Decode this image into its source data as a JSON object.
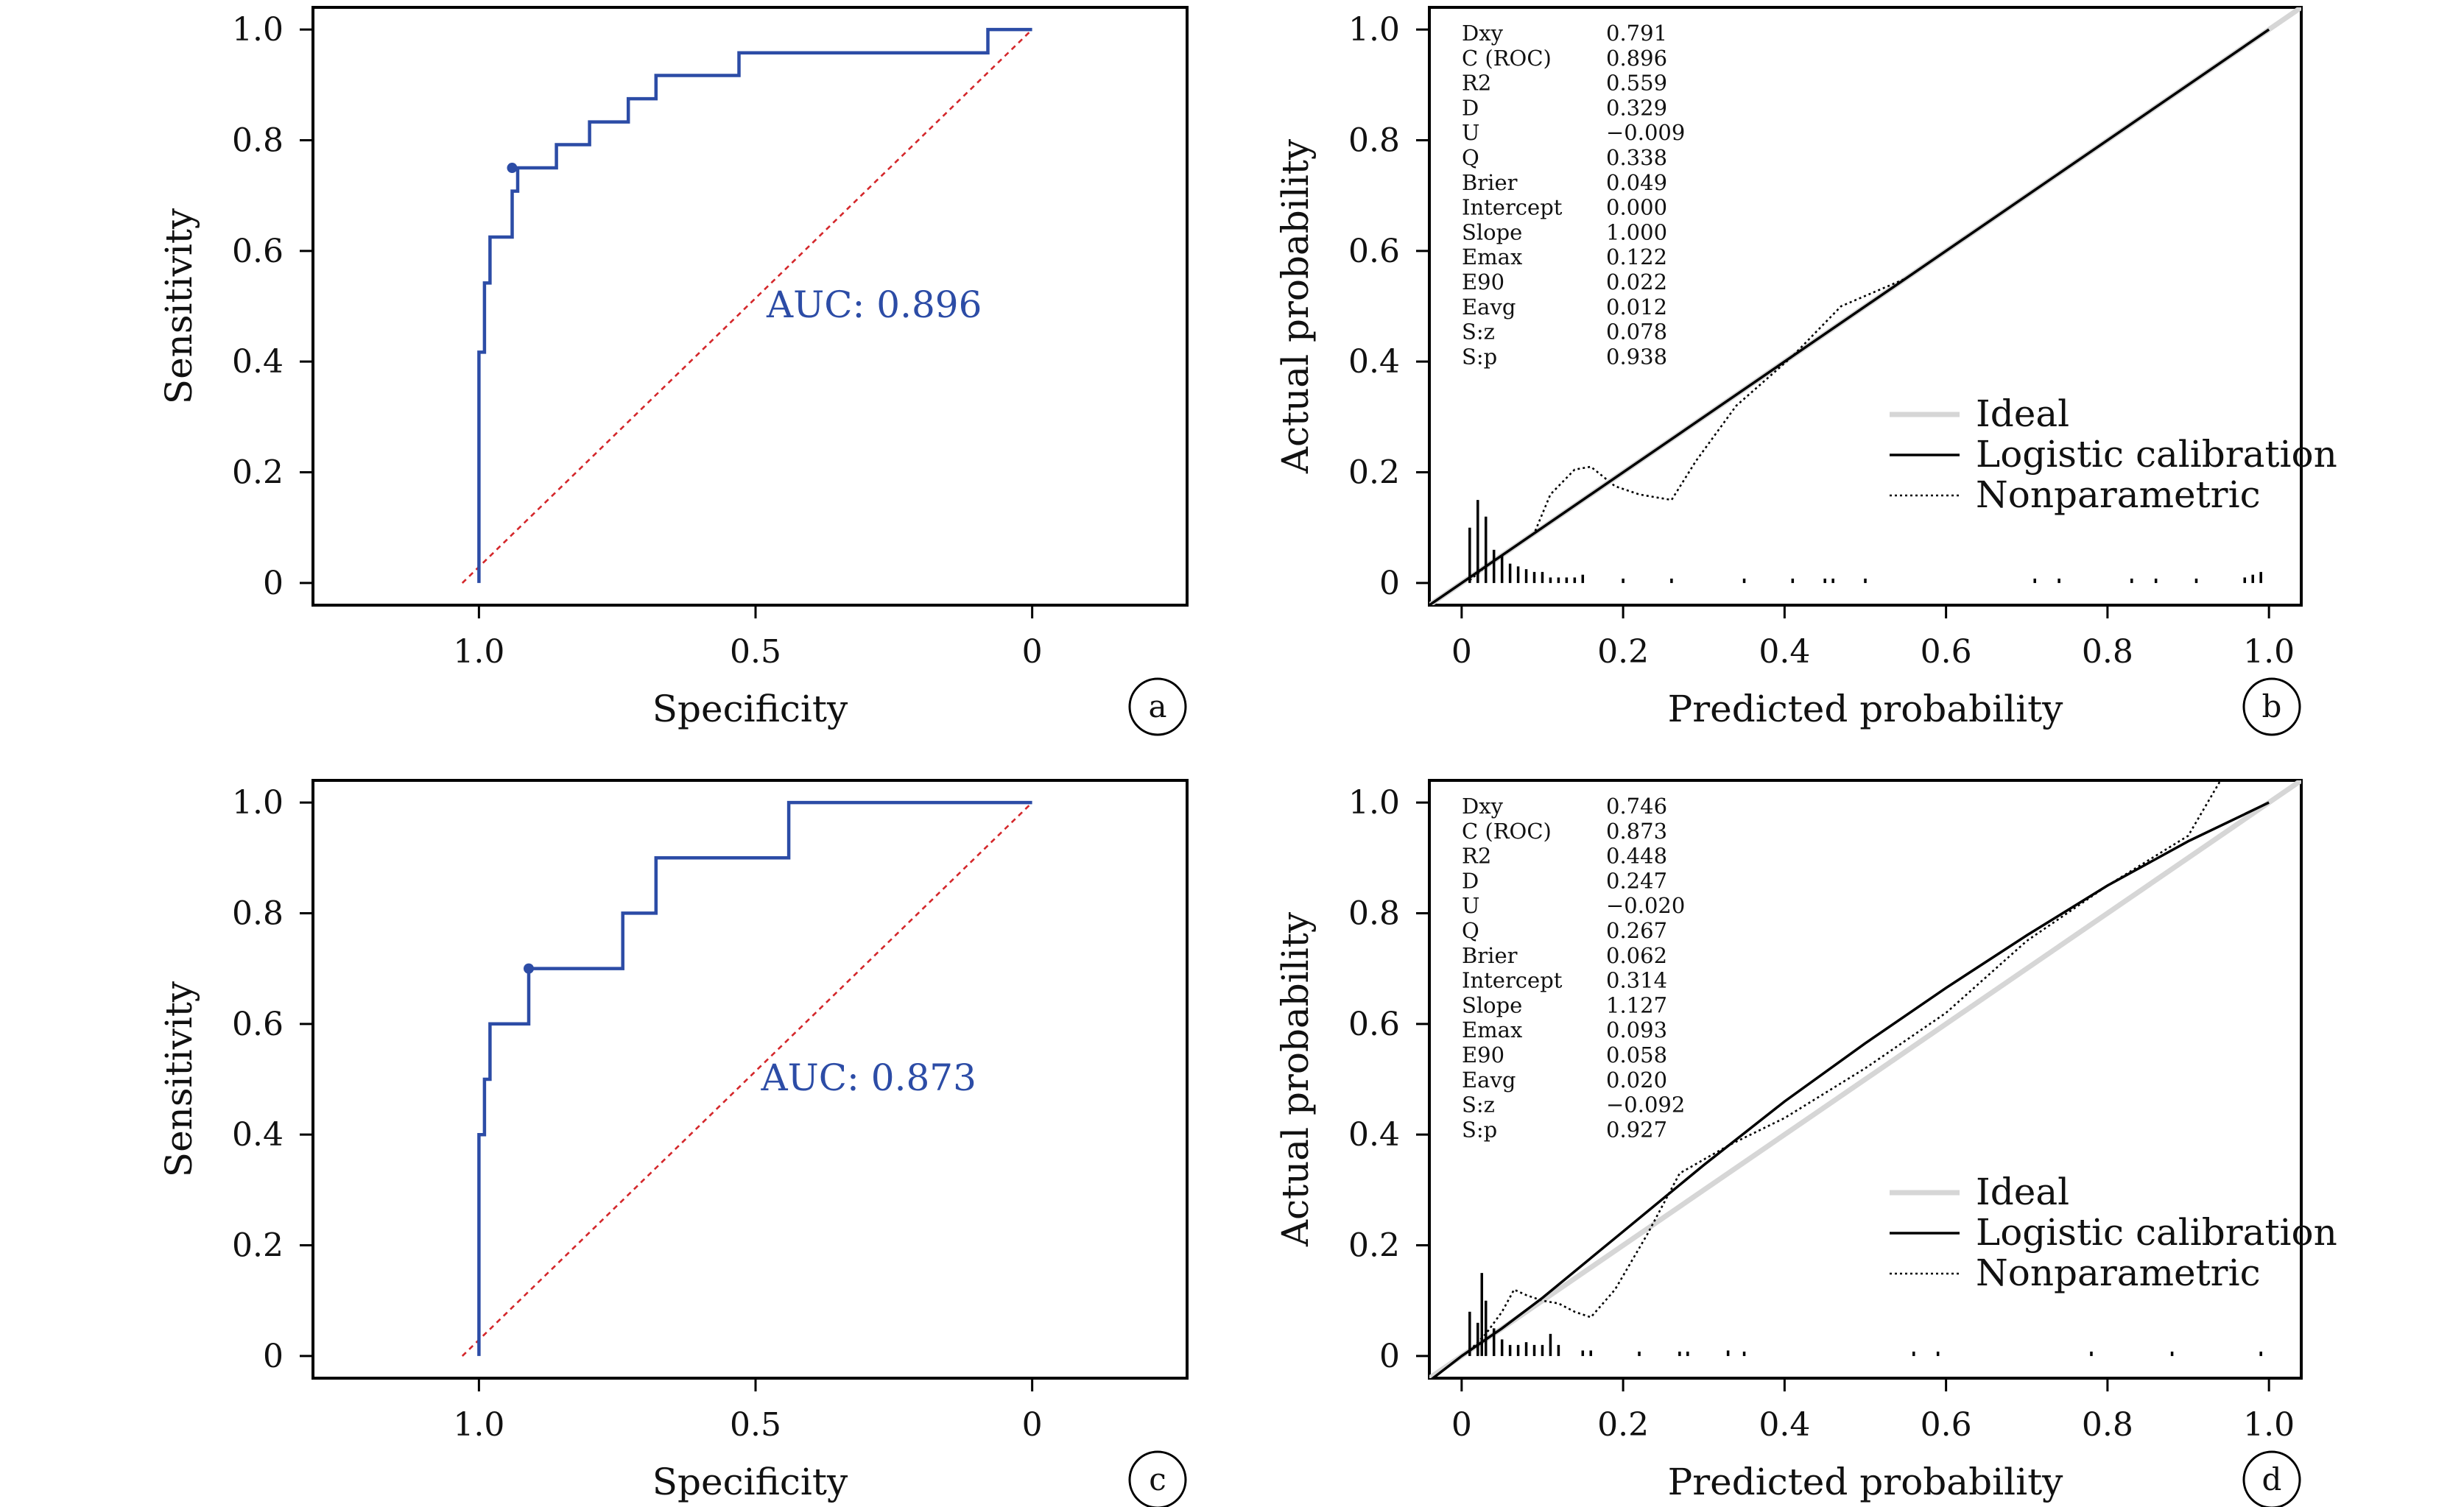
{
  "chart_data": [
    {
      "id": "a",
      "type": "line",
      "subtype": "roc",
      "xlabel": "Specificity",
      "ylabel": "Sensitivity",
      "x_reversed": true,
      "xlim": [
        1.3,
        -0.28
      ],
      "ylim": [
        -0.04,
        1.04
      ],
      "xticks": [
        1.0,
        0.5,
        0
      ],
      "xtick_labels": [
        "1.0",
        "0.5",
        "0"
      ],
      "yticks": [
        0,
        0.2,
        0.4,
        0.6,
        0.8,
        1.0
      ],
      "ytick_labels": [
        "0",
        "0.2",
        "0.4",
        "0.6",
        "0.8",
        "1.0"
      ],
      "auc_label": "AUC: 0.896",
      "auc_position": [
        0.48,
        0.48
      ],
      "marked_point": [
        0.94,
        0.75
      ],
      "curve": [
        [
          1.0,
          0
        ],
        [
          1.0,
          0.417
        ],
        [
          0.99,
          0.417
        ],
        [
          0.99,
          0.542
        ],
        [
          0.98,
          0.542
        ],
        [
          0.98,
          0.625
        ],
        [
          0.96,
          0.625
        ],
        [
          0.96,
          0.625
        ],
        [
          0.94,
          0.625
        ],
        [
          0.94,
          0.708
        ],
        [
          0.93,
          0.708
        ],
        [
          0.93,
          0.75
        ],
        [
          0.86,
          0.75
        ],
        [
          0.86,
          0.792
        ],
        [
          0.8,
          0.792
        ],
        [
          0.8,
          0.833
        ],
        [
          0.73,
          0.833
        ],
        [
          0.73,
          0.875
        ],
        [
          0.68,
          0.875
        ],
        [
          0.68,
          0.917
        ],
        [
          0.53,
          0.917
        ],
        [
          0.53,
          0.958
        ],
        [
          0.08,
          0.958
        ],
        [
          0.08,
          1.0
        ],
        [
          0,
          1.0
        ]
      ],
      "chance_line": [
        [
          1.03,
          0
        ],
        [
          0,
          1.0
        ]
      ],
      "panel_label": "a"
    },
    {
      "id": "b",
      "type": "line",
      "subtype": "calibration",
      "xlabel": "Predicted probability",
      "ylabel": "Actual probability",
      "xlim": [
        -0.04,
        1.04
      ],
      "ylim": [
        -0.04,
        1.04
      ],
      "xticks": [
        0,
        0.2,
        0.4,
        0.6,
        0.8,
        1.0
      ],
      "xtick_labels": [
        "0",
        "0.2",
        "0.4",
        "0.6",
        "0.8",
        "1.0"
      ],
      "yticks": [
        0,
        0.2,
        0.4,
        0.6,
        0.8,
        1.0
      ],
      "ytick_labels": [
        "0",
        "0.2",
        "0.4",
        "0.6",
        "0.8",
        "1.0"
      ],
      "stats": [
        {
          "name": "Dxy",
          "value": "0.791"
        },
        {
          "name": "C (ROC)",
          "value": "0.896"
        },
        {
          "name": "R2",
          "value": "0.559"
        },
        {
          "name": "D",
          "value": "0.329"
        },
        {
          "name": "U",
          "value": "−0.009"
        },
        {
          "name": "Q",
          "value": "0.338"
        },
        {
          "name": "Brier",
          "value": "0.049"
        },
        {
          "name": "Intercept",
          "value": "0.000"
        },
        {
          "name": "Slope",
          "value": "1.000"
        },
        {
          "name": "Emax",
          "value": "0.122"
        },
        {
          "name": "E90",
          "value": "0.022"
        },
        {
          "name": "Eavg",
          "value": "0.012"
        },
        {
          "name": "S:z",
          "value": "0.078"
        },
        {
          "name": "S:p",
          "value": "0.938"
        }
      ],
      "legend": [
        "Ideal",
        "Logistic calibration",
        "Nonparametric"
      ],
      "legend_position": "bottom-right",
      "ideal": [
        [
          -0.04,
          -0.04
        ],
        [
          1.04,
          1.04
        ]
      ],
      "logistic": [
        [
          -0.04,
          -0.04
        ],
        [
          1.0,
          1.0
        ]
      ],
      "nonparametric": [
        [
          0.01,
          0.005
        ],
        [
          0.03,
          0.03
        ],
        [
          0.06,
          0.06
        ],
        [
          0.09,
          0.09
        ],
        [
          0.11,
          0.16
        ],
        [
          0.14,
          0.205
        ],
        [
          0.16,
          0.21
        ],
        [
          0.19,
          0.175
        ],
        [
          0.22,
          0.16
        ],
        [
          0.24,
          0.155
        ],
        [
          0.26,
          0.15
        ],
        [
          0.29,
          0.22
        ],
        [
          0.34,
          0.32
        ],
        [
          0.41,
          0.41
        ],
        [
          0.47,
          0.5
        ],
        [
          0.55,
          0.55
        ],
        [
          0.65,
          0.65
        ],
        [
          0.75,
          0.75
        ],
        [
          0.85,
          0.85
        ],
        [
          0.99,
          0.99
        ]
      ],
      "rug_bottom": [
        [
          0.01,
          0.1
        ],
        [
          0.02,
          0.15
        ],
        [
          0.03,
          0.12
        ],
        [
          0.04,
          0.06
        ],
        [
          0.05,
          0.05
        ],
        [
          0.06,
          0.035
        ],
        [
          0.07,
          0.03
        ],
        [
          0.08,
          0.025
        ],
        [
          0.09,
          0.02
        ],
        [
          0.1,
          0.02
        ],
        [
          0.11,
          0.01
        ],
        [
          0.12,
          0.01
        ],
        [
          0.13,
          0.01
        ],
        [
          0.14,
          0.01
        ],
        [
          0.15,
          0.015
        ],
        [
          0.2,
          0.008
        ],
        [
          0.26,
          0.008
        ],
        [
          0.35,
          0.008
        ],
        [
          0.41,
          0.008
        ],
        [
          0.45,
          0.008
        ],
        [
          0.46,
          0.008
        ],
        [
          0.5,
          0.008
        ],
        [
          0.71,
          0.008
        ],
        [
          0.74,
          0.008
        ],
        [
          0.83,
          0.008
        ],
        [
          0.86,
          0.008
        ],
        [
          0.91,
          0.008
        ],
        [
          0.97,
          0.01
        ],
        [
          0.98,
          0.015
        ],
        [
          0.99,
          0.02
        ]
      ],
      "panel_label": "b"
    },
    {
      "id": "c",
      "type": "line",
      "subtype": "roc",
      "xlabel": "Specificity",
      "ylabel": "Sensitivity",
      "x_reversed": true,
      "xlim": [
        1.3,
        -0.28
      ],
      "ylim": [
        -0.04,
        1.04
      ],
      "xticks": [
        1.0,
        0.5,
        0
      ],
      "xtick_labels": [
        "1.0",
        "0.5",
        "0"
      ],
      "yticks": [
        0,
        0.2,
        0.4,
        0.6,
        0.8,
        1.0
      ],
      "ytick_labels": [
        "0",
        "0.2",
        "0.4",
        "0.6",
        "0.8",
        "1.0"
      ],
      "auc_label": "AUC: 0.873",
      "auc_position": [
        0.49,
        0.48
      ],
      "marked_point": [
        0.91,
        0.7
      ],
      "curve": [
        [
          1.0,
          0
        ],
        [
          1.0,
          0.4
        ],
        [
          0.99,
          0.4
        ],
        [
          0.99,
          0.5
        ],
        [
          0.98,
          0.5
        ],
        [
          0.98,
          0.6
        ],
        [
          0.91,
          0.6
        ],
        [
          0.91,
          0.7
        ],
        [
          0.74,
          0.7
        ],
        [
          0.74,
          0.8
        ],
        [
          0.68,
          0.8
        ],
        [
          0.68,
          0.9
        ],
        [
          0.44,
          0.9
        ],
        [
          0.44,
          1.0
        ],
        [
          0,
          1.0
        ]
      ],
      "chance_line": [
        [
          1.03,
          0
        ],
        [
          0,
          1.0
        ]
      ],
      "panel_label": "c"
    },
    {
      "id": "d",
      "type": "line",
      "subtype": "calibration",
      "xlabel": "Predicted probability",
      "ylabel": "Actual probability",
      "xlim": [
        -0.04,
        1.04
      ],
      "ylim": [
        -0.04,
        1.04
      ],
      "xticks": [
        0,
        0.2,
        0.4,
        0.6,
        0.8,
        1.0
      ],
      "xtick_labels": [
        "0",
        "0.2",
        "0.4",
        "0.6",
        "0.8",
        "1.0"
      ],
      "yticks": [
        0,
        0.2,
        0.4,
        0.6,
        0.8,
        1.0
      ],
      "ytick_labels": [
        "0",
        "0.2",
        "0.4",
        "0.6",
        "0.8",
        "1.0"
      ],
      "stats": [
        {
          "name": "Dxy",
          "value": "0.746"
        },
        {
          "name": "C (ROC)",
          "value": "0.873"
        },
        {
          "name": "R2",
          "value": "0.448"
        },
        {
          "name": "D",
          "value": "0.247"
        },
        {
          "name": "U",
          "value": "−0.020"
        },
        {
          "name": "Q",
          "value": "0.267"
        },
        {
          "name": "Brier",
          "value": "0.062"
        },
        {
          "name": "Intercept",
          "value": "0.314"
        },
        {
          "name": "Slope",
          "value": "1.127"
        },
        {
          "name": "Emax",
          "value": "0.093"
        },
        {
          "name": "E90",
          "value": "0.058"
        },
        {
          "name": "Eavg",
          "value": "0.020"
        },
        {
          "name": "S:z",
          "value": "−0.092"
        },
        {
          "name": "S:p",
          "value": "0.927"
        }
      ],
      "legend": [
        "Ideal",
        "Logistic calibration",
        "Nonparametric"
      ],
      "legend_position": "bottom-right",
      "ideal": [
        [
          -0.04,
          -0.04
        ],
        [
          1.04,
          1.04
        ]
      ],
      "logistic": [
        [
          -0.04,
          -0.045
        ],
        [
          0.0,
          0.0
        ],
        [
          0.05,
          0.05
        ],
        [
          0.1,
          0.105
        ],
        [
          0.2,
          0.225
        ],
        [
          0.3,
          0.345
        ],
        [
          0.4,
          0.46
        ],
        [
          0.5,
          0.565
        ],
        [
          0.6,
          0.665
        ],
        [
          0.7,
          0.76
        ],
        [
          0.8,
          0.85
        ],
        [
          0.9,
          0.93
        ],
        [
          1.0,
          1.0
        ]
      ],
      "nonparametric": [
        [
          0.01,
          0.01
        ],
        [
          0.03,
          0.04
        ],
        [
          0.05,
          0.08
        ],
        [
          0.065,
          0.12
        ],
        [
          0.08,
          0.11
        ],
        [
          0.1,
          0.1
        ],
        [
          0.12,
          0.095
        ],
        [
          0.14,
          0.08
        ],
        [
          0.16,
          0.07
        ],
        [
          0.19,
          0.12
        ],
        [
          0.23,
          0.22
        ],
        [
          0.27,
          0.33
        ],
        [
          0.33,
          0.38
        ],
        [
          0.4,
          0.43
        ],
        [
          0.5,
          0.52
        ],
        [
          0.6,
          0.62
        ],
        [
          0.7,
          0.75
        ],
        [
          0.8,
          0.85
        ],
        [
          0.9,
          0.94
        ],
        [
          0.94,
          1.04
        ]
      ],
      "rug_bottom": [
        [
          0.01,
          0.08
        ],
        [
          0.02,
          0.06
        ],
        [
          0.025,
          0.15
        ],
        [
          0.03,
          0.1
        ],
        [
          0.04,
          0.05
        ],
        [
          0.05,
          0.03
        ],
        [
          0.06,
          0.02
        ],
        [
          0.07,
          0.02
        ],
        [
          0.08,
          0.025
        ],
        [
          0.09,
          0.02
        ],
        [
          0.1,
          0.02
        ],
        [
          0.11,
          0.04
        ],
        [
          0.12,
          0.02
        ],
        [
          0.15,
          0.01
        ],
        [
          0.16,
          0.01
        ],
        [
          0.22,
          0.008
        ],
        [
          0.27,
          0.008
        ],
        [
          0.28,
          0.008
        ],
        [
          0.33,
          0.01
        ],
        [
          0.35,
          0.008
        ],
        [
          0.56,
          0.008
        ],
        [
          0.59,
          0.008
        ],
        [
          0.78,
          0.008
        ],
        [
          0.88,
          0.008
        ],
        [
          0.99,
          0.008
        ]
      ],
      "panel_label": "d"
    }
  ]
}
